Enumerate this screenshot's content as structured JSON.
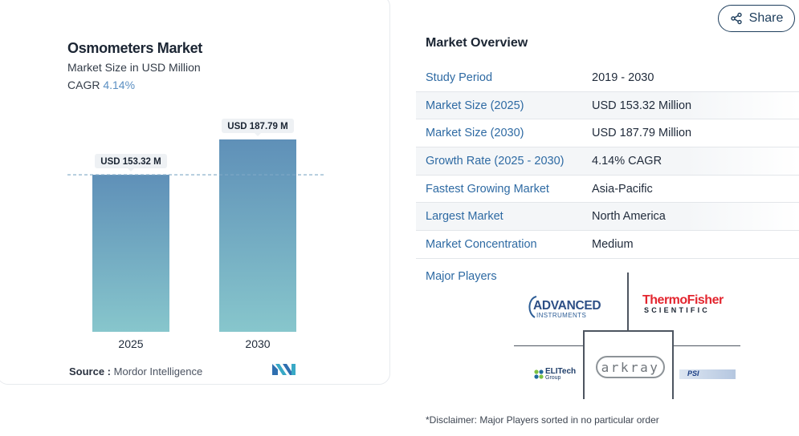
{
  "chart": {
    "title": "Osmometers Market",
    "subtitle": "Market Size in USD Million",
    "cagr_label": "CAGR",
    "cagr_value": "4.14%",
    "source_label": "Source :",
    "source_value": "Mordor Intelligence"
  },
  "chart_data": {
    "type": "bar",
    "title": "Osmometers Market",
    "subtitle": "Market Size in USD Million",
    "categories": [
      "2025",
      "2030"
    ],
    "values": [
      153.32,
      187.79
    ],
    "data_labels": [
      "USD 153.32 M",
      "USD 187.79 M"
    ],
    "xlabel": "",
    "ylabel": "",
    "ylim": [
      0,
      187.79
    ],
    "reference_line": 153.32,
    "grid": false,
    "legend": "none",
    "bar_color_top": "#5f90b8",
    "bar_color_bottom": "#87c6cc"
  },
  "share": {
    "label": "Share"
  },
  "overview": {
    "title": "Market Overview",
    "rows": [
      {
        "key": "Study Period",
        "value": "2019 - 2030"
      },
      {
        "key": "Market Size (2025)",
        "value": "USD 153.32 Million"
      },
      {
        "key": "Market Size (2030)",
        "value": "USD 187.79 Million"
      },
      {
        "key": "Growth Rate (2025 - 2030)",
        "value": "4.14% CAGR"
      },
      {
        "key": "Fastest Growing Market",
        "value": "Asia-Pacific"
      },
      {
        "key": "Largest Market",
        "value": "North America"
      },
      {
        "key": "Market Concentration",
        "value": "Medium"
      }
    ],
    "major_players_label": "Major Players",
    "players": {
      "advanced_line1": "ADVANCED",
      "advanced_line2": "INSTRUMENTS",
      "thermo_line1": "ThermoFisher",
      "thermo_line2": "SCIENTIFIC",
      "elitech_line1": "ELITech",
      "elitech_line2": "Group",
      "arkray": "arkray",
      "psi": "PSI"
    },
    "disclaimer": "*Disclaimer: Major Players sorted in no particular order"
  },
  "colors": {
    "accent_blue": "#2e6aa3",
    "navy": "#1d3d5c",
    "thermo_red": "#e3262f"
  }
}
